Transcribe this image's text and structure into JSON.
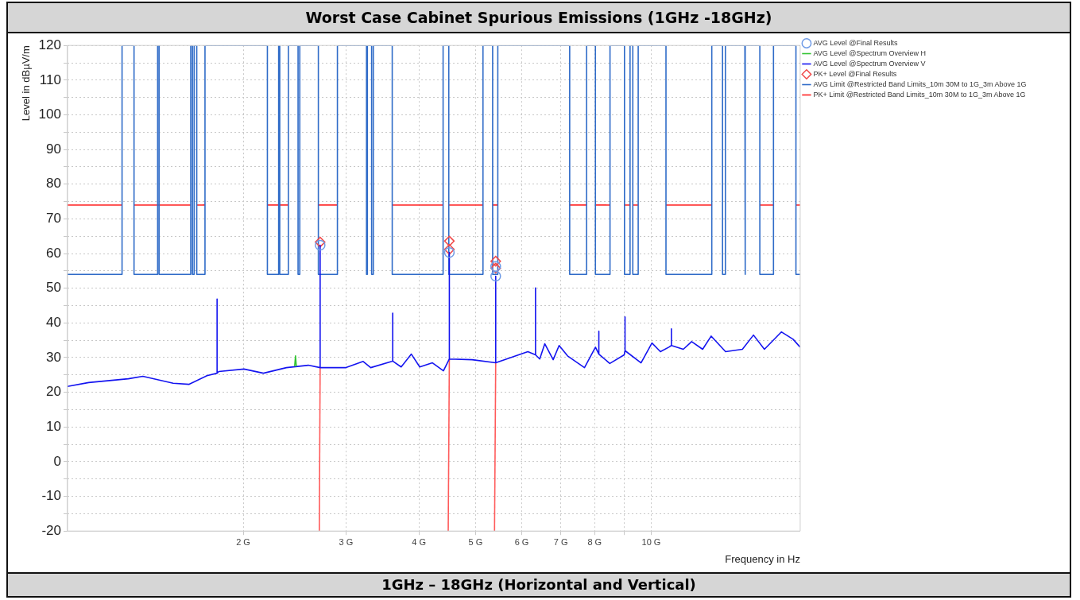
{
  "chart_data": {
    "type": "line",
    "title": "Worst Case Cabinet Spurious Emissions (1GHz -18GHz)",
    "xlabel": "Frequency in Hz",
    "ylabel": "Level in dBµV/m",
    "log": "x",
    "grid": true,
    "legend": "right",
    "xlim": [
      1,
      18
    ],
    "xticks": [
      {
        "value": 2,
        "label": "2 G"
      },
      {
        "value": 3,
        "label": "3 G"
      },
      {
        "value": 4,
        "label": "4 G"
      },
      {
        "value": 5,
        "label": "5 G"
      },
      {
        "value": 6,
        "label": "6 G"
      },
      {
        "value": 7,
        "label": "7 G"
      },
      {
        "value": 8,
        "label": "8 G"
      },
      {
        "value": 9,
        "label": null
      },
      {
        "value": 10,
        "label": "10 G"
      }
    ],
    "ylim": [
      -20,
      120
    ],
    "yticks": [
      -20,
      {
        "value": -15,
        "label": null
      },
      -10,
      {
        "value": -5,
        "label": null
      },
      0,
      {
        "value": 5,
        "label": null
      },
      10,
      {
        "value": 15,
        "label": null
      },
      20,
      {
        "value": 25,
        "label": null
      },
      30,
      {
        "value": 35,
        "label": null
      },
      40,
      {
        "value": 45,
        "label": null
      },
      50,
      {
        "value": 55,
        "label": null
      },
      60,
      {
        "value": 65,
        "label": null
      },
      70,
      {
        "value": 75,
        "label": null
      },
      80,
      {
        "value": 85,
        "label": null
      },
      90,
      {
        "value": 95,
        "label": null
      },
      100,
      {
        "value": 105,
        "label": null
      },
      110,
      {
        "value": 115,
        "label": null
      },
      120
    ],
    "annotations": [
      "1GHz – 18GHz (Horizontal and Vertical)"
    ],
    "series": [
      {
        "name": "AVG Level @Final Results",
        "type": "scatter",
        "marker": "circle",
        "color": "#6f9be6",
        "x": [
          2.709,
          4.51,
          5.415,
          5.415
        ],
        "values": [
          62.4,
          60.3,
          56.3,
          53.5
        ]
      },
      {
        "name": "AVG Level @Spectrum Overview H",
        "color": "#33c433",
        "x": [
          2.45,
          2.458,
          2.466
        ],
        "values": [
          27.5,
          30.5,
          27.5
        ]
      },
      {
        "name": "AVG Level @Spectrum Overview V",
        "color": "#1414f0",
        "x": [
          1.0,
          1.087,
          1.271,
          1.346,
          1.517,
          1.616,
          1.733,
          1.804,
          1.804,
          1.804,
          1.816,
          2.006,
          2.166,
          2.371,
          2.585,
          2.709,
          2.709,
          2.709,
          2.993,
          3.21,
          3.307,
          3.594,
          3.607,
          3.607,
          3.607,
          3.729,
          3.882,
          4.013,
          4.219,
          4.406,
          4.51,
          4.51,
          4.51,
          4.934,
          5.415,
          5.415,
          5.415,
          6.147,
          6.336,
          6.336,
          6.336,
          6.442,
          6.572,
          6.793,
          6.954,
          7.189,
          7.686,
          8.026,
          8.134,
          8.134,
          8.134,
          8.493,
          8.99,
          9.019,
          9.019,
          9.019,
          9.607,
          10.03,
          10.37,
          10.72,
          10.83,
          10.83,
          10.83,
          11.35,
          11.73,
          12.25,
          12.67,
          13.41,
          14.33,
          14.97,
          15.63,
          16.71,
          17.5,
          18.0
        ],
        "values": [
          21.7,
          22.8,
          23.9,
          24.6,
          22.6,
          22.3,
          24.8,
          25.5,
          46.9,
          25.5,
          26.0,
          26.7,
          25.5,
          27.1,
          27.8,
          27.1,
          62.4,
          27.1,
          27.1,
          28.9,
          27.1,
          28.9,
          29.0,
          42.8,
          29.0,
          27.3,
          31.0,
          27.3,
          28.5,
          26.2,
          29.6,
          60.3,
          29.6,
          29.4,
          28.5,
          53.5,
          28.5,
          31.7,
          30.8,
          50.1,
          30.8,
          29.6,
          34.0,
          29.4,
          33.5,
          30.5,
          27.1,
          33.0,
          31.0,
          37.6,
          31.0,
          28.3,
          30.8,
          32.0,
          41.7,
          32.0,
          28.5,
          34.2,
          31.7,
          33.0,
          33.5,
          38.3,
          33.5,
          32.4,
          34.6,
          32.4,
          36.2,
          31.7,
          32.4,
          36.5,
          32.4,
          37.4,
          35.3,
          33.0
        ]
      },
      {
        "name": "PK+ Level @Final Results",
        "type": "scatter",
        "marker": "diamond",
        "color": "#f04a4a",
        "x": [
          2.709,
          4.51,
          4.51,
          5.415,
          5.415
        ],
        "values": [
          63.3,
          63.6,
          61.2,
          57.8,
          55.8
        ]
      },
      {
        "name": "AVG Limit @Restricted Band Limits_10m 30M to 1G_3m Above 1G",
        "color": "#2f6bc8",
        "x": [
          1.0,
          1.24,
          1.24,
          1.3,
          1.3,
          1.427,
          1.427,
          1.435,
          1.435,
          1.626,
          1.626,
          1.637,
          1.637,
          1.648,
          1.648,
          1.665,
          1.665,
          1.72,
          1.72,
          2.2,
          2.2,
          2.3,
          2.3,
          2.31,
          2.31,
          2.39,
          2.39,
          2.483,
          2.483,
          2.5,
          2.5,
          2.69,
          2.69,
          2.9,
          2.9,
          3.253,
          3.253,
          3.264,
          3.264,
          3.319,
          3.319,
          3.341,
          3.341,
          3.6,
          3.6,
          4.4,
          4.4,
          4.5,
          4.5,
          5.15,
          5.15,
          5.35,
          5.35,
          5.46,
          5.46,
          7.25,
          7.25,
          7.75,
          7.75,
          8.025,
          8.025,
          8.5,
          8.5,
          9.0,
          9.0,
          9.2,
          9.2,
          9.3,
          9.3,
          9.5,
          9.5,
          10.6,
          10.6,
          12.7,
          12.7,
          13.25,
          13.25,
          13.4,
          13.4,
          14.47,
          14.47,
          14.5,
          14.5,
          15.35,
          15.35,
          16.2,
          16.2,
          17.7,
          17.7,
          18.0
        ],
        "values": [
          54,
          54,
          120,
          120,
          54,
          54,
          120,
          120,
          54,
          54,
          120,
          120,
          54,
          54,
          120,
          120,
          54,
          54,
          120,
          120,
          54,
          54,
          120,
          120,
          54,
          54,
          120,
          120,
          54,
          54,
          120,
          120,
          54,
          54,
          120,
          120,
          54,
          54,
          120,
          120,
          54,
          54,
          120,
          120,
          54,
          54,
          120,
          120,
          54,
          54,
          120,
          120,
          54,
          54,
          120,
          120,
          54,
          54,
          120,
          120,
          54,
          54,
          120,
          120,
          54,
          54,
          120,
          120,
          54,
          54,
          120,
          120,
          54,
          54,
          120,
          120,
          54,
          54,
          120,
          120,
          54,
          54,
          120,
          120,
          54,
          54,
          120,
          120,
          54,
          54
        ]
      },
      {
        "name": "PK+ Limit @Restricted Band Limits_10m 30M to 1G_3m Above 1G",
        "color": "#ff2020",
        "x": [
          1.0,
          1.24
        ],
        "values": [
          74,
          74
        ]
      },
      {
        "color": "#ff2020",
        "x": [
          1.3,
          1.626
        ],
        "values": [
          74,
          74
        ]
      },
      {
        "color": "#ff2020",
        "x": [
          1.665,
          1.72
        ],
        "values": [
          74,
          74
        ]
      },
      {
        "color": "#ff2020",
        "x": [
          2.2,
          2.39
        ],
        "values": [
          74,
          74
        ]
      },
      {
        "color": "#ff2020",
        "x": [
          2.69,
          2.9
        ],
        "values": [
          74,
          74
        ]
      },
      {
        "color": "#ff2020",
        "x": [
          3.6,
          4.4
        ],
        "values": [
          74,
          74
        ]
      },
      {
        "color": "#ff2020",
        "x": [
          4.5,
          5.15
        ],
        "values": [
          74,
          74
        ]
      },
      {
        "color": "#ff2020",
        "x": [
          5.35,
          5.46
        ],
        "values": [
          74,
          74
        ]
      },
      {
        "color": "#ff2020",
        "x": [
          7.25,
          7.75
        ],
        "values": [
          74,
          74
        ]
      },
      {
        "color": "#ff2020",
        "x": [
          8.025,
          8.5
        ],
        "values": [
          74,
          74
        ]
      },
      {
        "color": "#ff2020",
        "x": [
          9.0,
          9.2
        ],
        "values": [
          74,
          74
        ]
      },
      {
        "color": "#ff2020",
        "x": [
          9.3,
          9.5
        ],
        "values": [
          74,
          74
        ]
      },
      {
        "color": "#ff2020",
        "x": [
          10.6,
          12.7
        ],
        "values": [
          74,
          74
        ]
      },
      {
        "color": "#ff2020",
        "x": [
          15.35,
          16.2
        ],
        "values": [
          74,
          74
        ]
      },
      {
        "color": "#ff2020",
        "x": [
          17.7,
          18.0
        ],
        "values": [
          74,
          74
        ]
      },
      {
        "color": "#ff5a5a",
        "x": [
          2.7,
          2.709
        ],
        "values": [
          -20,
          27.1
        ]
      },
      {
        "color": "#ff5a5a",
        "x": [
          4.49,
          4.51
        ],
        "values": [
          -20,
          29.6
        ]
      },
      {
        "color": "#ff5a5a",
        "x": [
          5.39,
          5.415
        ],
        "values": [
          -20,
          28.5
        ]
      }
    ]
  }
}
